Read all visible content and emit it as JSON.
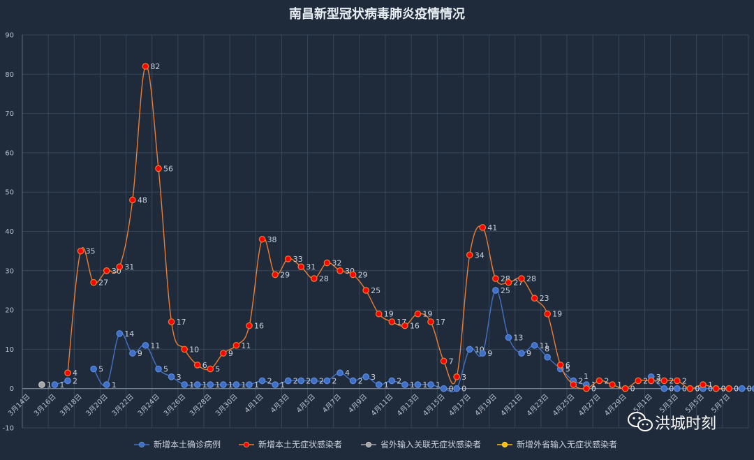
{
  "chart_data": {
    "type": "line",
    "title": "南昌新型冠状病毒肺炎疫情情况",
    "ylim": [
      -10,
      90
    ],
    "yticks": [
      -10,
      0,
      10,
      20,
      30,
      40,
      50,
      60,
      70,
      80,
      90
    ],
    "grid": true,
    "legend_position": "bottom",
    "x_tick_labels": [
      "3月14日",
      "3月16日",
      "3月18日",
      "3月20日",
      "3月22日",
      "3月24日",
      "3月26日",
      "3月28日",
      "3月30日",
      "4月1日",
      "4月3日",
      "4月5日",
      "4月7日",
      "4月9日",
      "4月11日",
      "4月13日",
      "4月15日",
      "4月17日",
      "4月19日",
      "4月21日",
      "4月23日",
      "4月25日",
      "4月27日",
      "4月29日",
      "5月1日",
      "5月3日",
      "5月5日",
      "5月7日"
    ],
    "series": [
      {
        "name": "新增本土确诊病例",
        "color": "#4472c4",
        "values": [
          null,
          null,
          1,
          2,
          null,
          5,
          1,
          14,
          9,
          11,
          5,
          3,
          1,
          1,
          1,
          1,
          1,
          1,
          2,
          1,
          2,
          2,
          2,
          2,
          4,
          2,
          3,
          1,
          2,
          1,
          1,
          1,
          0,
          0,
          10,
          9,
          25,
          13,
          9,
          11,
          8,
          5,
          2,
          1,
          null,
          null,
          null,
          null,
          3,
          0,
          0,
          0,
          0,
          0,
          0,
          0,
          0
        ],
        "labels": [
          null,
          null,
          "1",
          "2",
          null,
          "5",
          "1",
          "14",
          "9",
          "11",
          "5",
          "3",
          "1",
          "1",
          "1",
          "1",
          "1",
          "1",
          "2",
          "1",
          "2",
          "2",
          "2",
          "2",
          "4",
          "2",
          "3",
          "1",
          "2",
          "1",
          "1",
          "1",
          "0",
          "0",
          "10",
          "9",
          "25",
          "13",
          "9",
          "11",
          "",
          "5",
          "2",
          "1",
          null,
          null,
          null,
          null,
          "3",
          "0",
          "0",
          "0",
          "0",
          "0",
          "0",
          "0",
          "0"
        ]
      },
      {
        "name": "新增本土无症状感染者",
        "color": "#ed7d31",
        "values": [
          null,
          null,
          null,
          4,
          35,
          27,
          30,
          31,
          48,
          82,
          56,
          17,
          10,
          6,
          5,
          9,
          11,
          16,
          38,
          29,
          33,
          31,
          28,
          32,
          30,
          29,
          25,
          19,
          17,
          16,
          19,
          17,
          7,
          3,
          34,
          41,
          28,
          27,
          28,
          23,
          19,
          6,
          1,
          0,
          2,
          1,
          0,
          2,
          2,
          2,
          2,
          0,
          1,
          0,
          0
        ],
        "labels": [
          null,
          null,
          null,
          "4",
          "35",
          "27",
          "30",
          "31",
          "48",
          "82",
          "56",
          "17",
          "10",
          "6",
          "5",
          "9",
          "11",
          "16",
          "38",
          "29",
          "33",
          "31",
          "28",
          "32",
          "30",
          "29",
          "25",
          "19",
          "17",
          "16",
          "19",
          "17",
          "7",
          "3",
          "34",
          "41",
          "28",
          "27",
          "28",
          "23",
          "19",
          "6",
          "",
          "0",
          "2",
          "1",
          "0",
          "2",
          "2",
          "2",
          "2",
          "0",
          "1",
          "0",
          "0"
        ]
      },
      {
        "name": "省外输入关联无症状感染者",
        "color": "#a5a5a5",
        "values": [
          null,
          1
        ],
        "labels": [
          null,
          "1"
        ]
      },
      {
        "name": "新增外省输入无症状感染者",
        "color": "#ffc000",
        "values": [],
        "labels": []
      }
    ],
    "extra_labels": [
      {
        "date_index": 40,
        "value": 8,
        "text": "8"
      },
      {
        "date_index": 43,
        "value": 1,
        "text": "1"
      }
    ]
  },
  "watermark": {
    "icon": "wechat-icon",
    "text": "洪城时刻"
  }
}
